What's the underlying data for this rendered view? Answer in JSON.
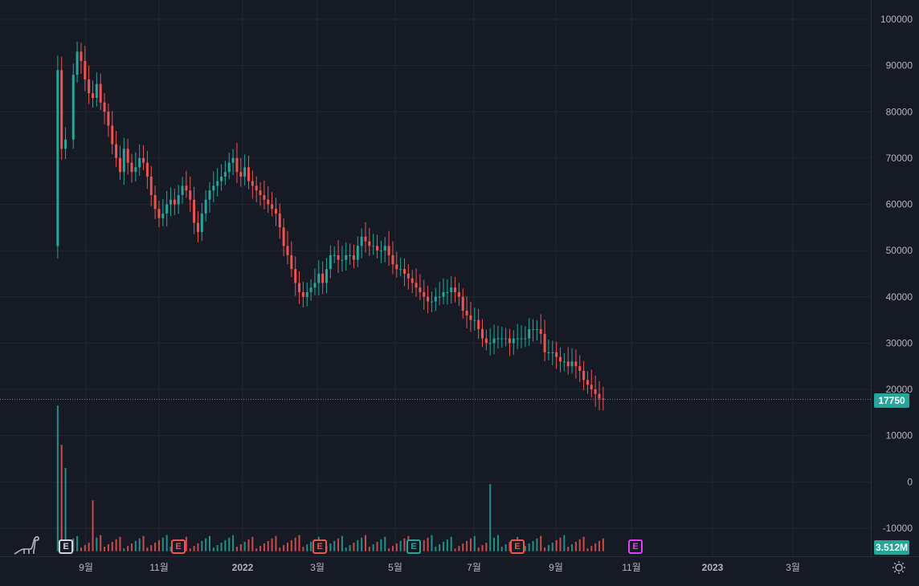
{
  "chart_data": {
    "type": "candlestick",
    "price_axis": {
      "ticks": [
        100000,
        90000,
        80000,
        70000,
        60000,
        50000,
        40000,
        30000,
        20000,
        10000,
        0,
        -10000
      ],
      "range": [
        -15000,
        104000
      ]
    },
    "x_axis": {
      "labels": [
        "9월",
        "11월",
        "2022",
        "3월",
        "5월",
        "7월",
        "9월",
        "11월",
        "2023",
        "3월"
      ],
      "bold_labels": [
        "2022",
        "2023"
      ]
    },
    "last_price": "17750",
    "last_volume": "3.512M",
    "price_path": [
      [
        0,
        51000
      ],
      [
        1,
        89000
      ],
      [
        2,
        72000
      ],
      [
        3,
        74000
      ],
      [
        5,
        88000
      ],
      [
        6,
        93000
      ],
      [
        7,
        91000
      ],
      [
        8,
        87000
      ],
      [
        9,
        84000
      ],
      [
        10,
        83000
      ],
      [
        11,
        86000
      ],
      [
        12,
        82000
      ],
      [
        13,
        80000
      ],
      [
        14,
        77000
      ],
      [
        15,
        73000
      ],
      [
        16,
        70000
      ],
      [
        17,
        67000
      ],
      [
        18,
        72000
      ],
      [
        19,
        69000
      ],
      [
        20,
        67000
      ],
      [
        21,
        68000
      ],
      [
        22,
        70000
      ],
      [
        23,
        69000
      ],
      [
        24,
        66000
      ],
      [
        25,
        62000
      ],
      [
        26,
        59000
      ],
      [
        27,
        57000
      ],
      [
        28,
        58000
      ],
      [
        29,
        60000
      ],
      [
        30,
        61000
      ],
      [
        31,
        60000
      ],
      [
        32,
        62000
      ],
      [
        33,
        64000
      ],
      [
        34,
        63000
      ],
      [
        35,
        61000
      ],
      [
        36,
        56000
      ],
      [
        37,
        54000
      ],
      [
        38,
        58000
      ],
      [
        39,
        61000
      ],
      [
        40,
        63000
      ],
      [
        41,
        64000
      ],
      [
        42,
        65000
      ],
      [
        43,
        66000
      ],
      [
        44,
        67000
      ],
      [
        45,
        69000
      ],
      [
        46,
        70000
      ],
      [
        47,
        67000
      ],
      [
        48,
        66000
      ],
      [
        49,
        68000
      ],
      [
        50,
        65000
      ],
      [
        51,
        64000
      ],
      [
        52,
        63000
      ],
      [
        53,
        62000
      ],
      [
        54,
        61000
      ],
      [
        55,
        60000
      ],
      [
        56,
        59000
      ],
      [
        57,
        58000
      ],
      [
        58,
        55000
      ],
      [
        59,
        51000
      ],
      [
        60,
        49000
      ],
      [
        61,
        46000
      ],
      [
        62,
        43000
      ],
      [
        63,
        41000
      ],
      [
        64,
        40000
      ],
      [
        65,
        41000
      ],
      [
        66,
        42000
      ],
      [
        67,
        43000
      ],
      [
        68,
        45000
      ],
      [
        69,
        43000
      ],
      [
        70,
        46000
      ],
      [
        71,
        49000
      ],
      [
        72,
        49000
      ],
      [
        73,
        48000
      ],
      [
        74,
        48000
      ],
      [
        75,
        49000
      ],
      [
        76,
        49000
      ],
      [
        77,
        48000
      ],
      [
        78,
        51000
      ],
      [
        79,
        53000
      ],
      [
        80,
        52000
      ],
      [
        81,
        51000
      ],
      [
        82,
        51000
      ],
      [
        83,
        50000
      ],
      [
        84,
        50000
      ],
      [
        85,
        51000
      ],
      [
        86,
        49000
      ],
      [
        87,
        47000
      ],
      [
        88,
        46000
      ],
      [
        89,
        46000
      ],
      [
        90,
        45000
      ],
      [
        91,
        44000
      ],
      [
        92,
        43000
      ],
      [
        93,
        42000
      ],
      [
        94,
        41000
      ],
      [
        95,
        40000
      ],
      [
        96,
        39000
      ],
      [
        97,
        39000
      ],
      [
        98,
        40000
      ],
      [
        99,
        40000
      ],
      [
        100,
        41000
      ],
      [
        101,
        41000
      ],
      [
        102,
        42000
      ],
      [
        103,
        41000
      ],
      [
        104,
        40000
      ],
      [
        105,
        37000
      ],
      [
        106,
        36000
      ],
      [
        107,
        35000
      ],
      [
        108,
        35000
      ],
      [
        109,
        33000
      ],
      [
        110,
        31000
      ],
      [
        111,
        30000
      ],
      [
        112,
        30000
      ],
      [
        113,
        31000
      ],
      [
        114,
        31000
      ],
      [
        115,
        31000
      ],
      [
        116,
        31000
      ],
      [
        117,
        30000
      ],
      [
        118,
        31000
      ],
      [
        119,
        31000
      ],
      [
        120,
        31000
      ],
      [
        121,
        31000
      ],
      [
        122,
        33000
      ],
      [
        123,
        33000
      ],
      [
        124,
        33000
      ],
      [
        125,
        32000
      ],
      [
        126,
        28000
      ],
      [
        127,
        28000
      ],
      [
        128,
        28000
      ],
      [
        129,
        27000
      ],
      [
        130,
        26000
      ],
      [
        131,
        26000
      ],
      [
        132,
        25000
      ],
      [
        133,
        26000
      ],
      [
        134,
        25000
      ],
      [
        135,
        24000
      ],
      [
        136,
        22000
      ],
      [
        137,
        21000
      ],
      [
        138,
        20000
      ],
      [
        139,
        19000
      ],
      [
        140,
        18000
      ],
      [
        141,
        17750
      ]
    ],
    "volume_spikes": [
      {
        "bar": 1,
        "value": 16500
      },
      {
        "bar": 2,
        "value": 8000
      },
      {
        "bar": 3,
        "value": 3000
      },
      {
        "bar": 9,
        "value": -4000
      },
      {
        "bar": 111,
        "value": -500
      }
    ],
    "volume_base": -15000
  },
  "events": {
    "e1": {
      "label": "E",
      "color": "#d1d4dc"
    },
    "e2": {
      "label": "E",
      "color": "#ef5350"
    },
    "e3": {
      "label": "E",
      "color": "#ef5350"
    },
    "e4": {
      "label": "E",
      "color": "#26a69a"
    },
    "e5": {
      "label": "E",
      "color": "#ef5350"
    },
    "e6": {
      "label": "E",
      "color": "#e040fb"
    }
  },
  "colors": {
    "up": "#26a69a",
    "down": "#ef5350",
    "bg": "#161a25",
    "grid": "#232733"
  }
}
